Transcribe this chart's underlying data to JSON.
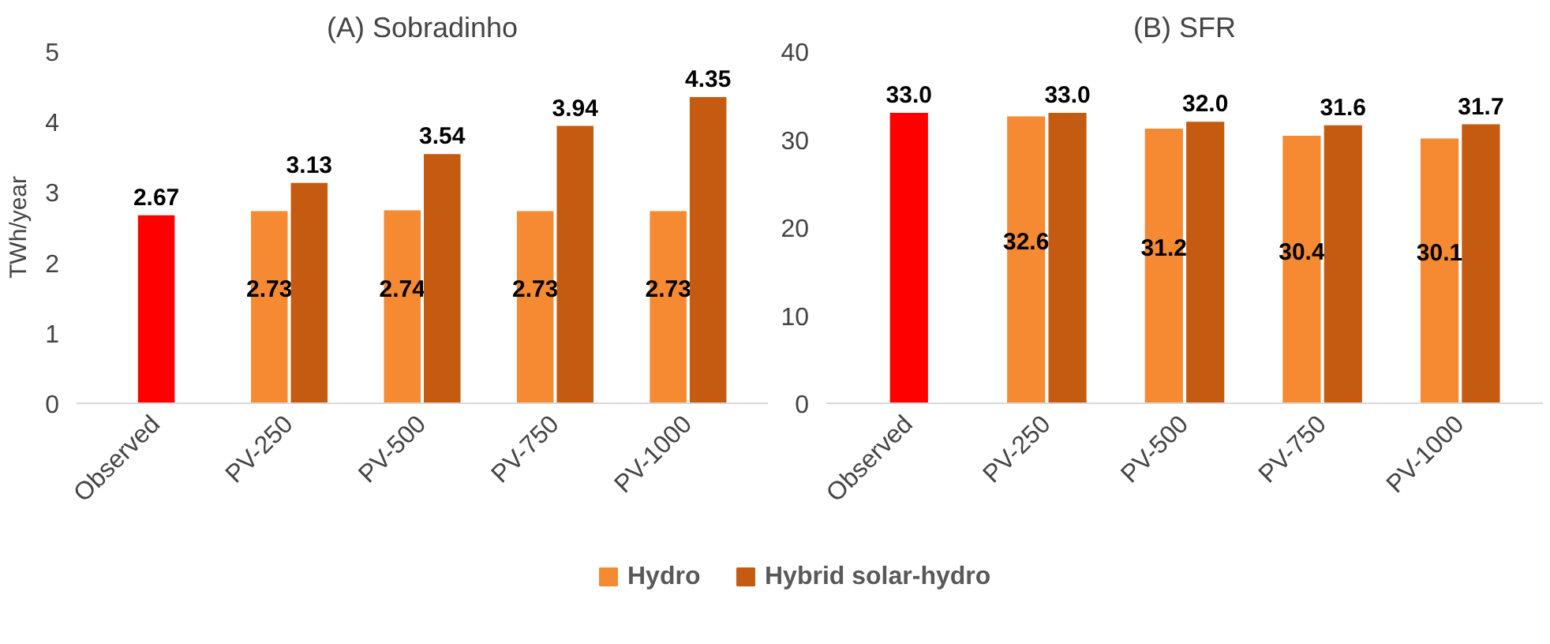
{
  "chart_data": [
    {
      "type": "bar",
      "title": "(A) Sobradinho",
      "ylabel": "TWh/year",
      "categories": [
        "Observed",
        "PV-250",
        "PV-500",
        "PV-750",
        "PV-1000"
      ],
      "ylim": [
        0,
        5
      ],
      "yticks": [
        0,
        1,
        2,
        3,
        4,
        5
      ],
      "grid": false,
      "legend": "bottom",
      "series": [
        {
          "color": "#ff0000",
          "values": [
            2.67,
            null,
            null,
            null,
            null
          ],
          "value_labels": [
            "2.67",
            null,
            null,
            null,
            null
          ]
        },
        {
          "name": "Hydro",
          "color": "#f58a33",
          "values": [
            null,
            2.73,
            2.74,
            2.73,
            2.73
          ],
          "value_labels": [
            null,
            "2.73",
            "2.74",
            "2.73",
            "2.73"
          ]
        },
        {
          "name": "Hybrid solar-hydro",
          "color": "#c55a11",
          "values": [
            null,
            3.13,
            3.54,
            3.94,
            4.35
          ],
          "value_labels": [
            null,
            "3.13",
            "3.54",
            "3.94",
            "4.35"
          ]
        }
      ]
    },
    {
      "type": "bar",
      "title": "(B) SFR",
      "categories": [
        "Observed",
        "PV-250",
        "PV-500",
        "PV-750",
        "PV-1000"
      ],
      "ylim": [
        0,
        40
      ],
      "yticks": [
        0,
        10,
        20,
        30,
        40
      ],
      "grid": false,
      "legend": "bottom",
      "series": [
        {
          "color": "#ff0000",
          "values": [
            33.0,
            null,
            null,
            null,
            null
          ],
          "value_labels": [
            "33.0",
            null,
            null,
            null,
            null
          ]
        },
        {
          "name": "Hydro",
          "color": "#f58a33",
          "values": [
            null,
            32.6,
            31.2,
            30.4,
            30.1
          ],
          "value_labels": [
            null,
            "32.6",
            "31.2",
            "30.4",
            "30.1"
          ]
        },
        {
          "name": "Hybrid solar-hydro",
          "color": "#c55a11",
          "values": [
            null,
            33.0,
            32.0,
            31.6,
            31.7
          ],
          "value_labels": [
            null,
            "33.0",
            "32.0",
            "31.6",
            "31.7"
          ]
        }
      ]
    }
  ]
}
